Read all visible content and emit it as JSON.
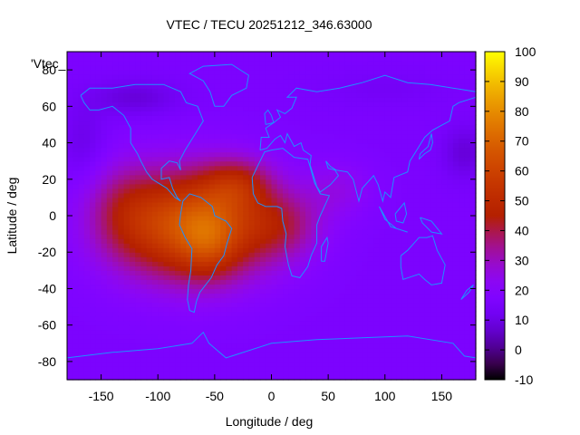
{
  "chart_data": {
    "type": "heatmap",
    "title": "VTEC / TECU 20251212_346.63000",
    "xlabel": "Longitude / deg",
    "ylabel": "Latitude / deg",
    "key_label": "'Vtec_",
    "xlim": [
      -180,
      180
    ],
    "ylim": [
      -90,
      90
    ],
    "xticks": [
      -150,
      -100,
      -50,
      0,
      50,
      100,
      150
    ],
    "yticks": [
      -80,
      -60,
      -40,
      -20,
      0,
      20,
      40,
      60,
      80
    ],
    "colorbar": {
      "min": -10,
      "max": 100,
      "ticks": [
        -10,
        0,
        10,
        20,
        30,
        40,
        50,
        60,
        70,
        80,
        90,
        100
      ]
    },
    "background_value": 16,
    "blobs": [
      {
        "lon": -70,
        "lat": -5,
        "sx": 70,
        "sy": 30,
        "amp": 50
      },
      {
        "lon": -30,
        "lat": 18,
        "sx": 30,
        "sy": 14,
        "amp": 18
      },
      {
        "lon": -55,
        "lat": -15,
        "sx": 25,
        "sy": 20,
        "amp": 12
      },
      {
        "lon": -130,
        "lat": 5,
        "sx": 30,
        "sy": 25,
        "amp": 10
      },
      {
        "lon": 10,
        "lat": -5,
        "sx": 35,
        "sy": 18,
        "amp": 14
      },
      {
        "lon": 60,
        "lat": 15,
        "sx": 30,
        "sy": 15,
        "amp": 8
      },
      {
        "lon": -120,
        "lat": 65,
        "sx": 40,
        "sy": 10,
        "amp": -8
      },
      {
        "lon": 170,
        "lat": 35,
        "sx": 20,
        "sy": 15,
        "amp": -8
      },
      {
        "lon": -165,
        "lat": 40,
        "sx": 20,
        "sy": 20,
        "amp": -6
      },
      {
        "lon": 100,
        "lat": 70,
        "sx": 60,
        "sy": 10,
        "amp": -3
      }
    ]
  }
}
